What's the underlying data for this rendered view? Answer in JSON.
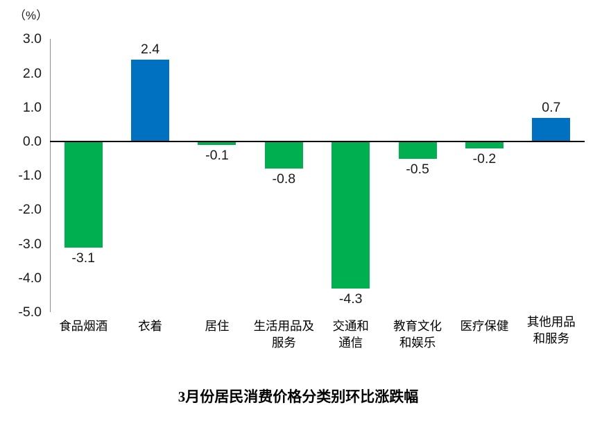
{
  "chart_data": {
    "type": "bar",
    "title": "3月份居民消费价格分类别环比涨跌幅",
    "ylabel": "（%）",
    "categories": [
      "食品烟酒",
      "衣着",
      "居住",
      "生活用品及\n服务",
      "交通和\n通信",
      "教育文化\n和娱乐",
      "医疗保健",
      "其他用品\n和服务"
    ],
    "values": [
      -3.1,
      2.4,
      -0.1,
      -0.8,
      -4.3,
      -0.5,
      -0.2,
      0.7
    ],
    "data_labels": [
      "-3.1",
      "2.4",
      "-0.1",
      "-0.8",
      "-4.3",
      "-0.5",
      "-0.2",
      "0.7"
    ],
    "ylim": [
      -5.0,
      3.0
    ],
    "ytick_step": 1.0,
    "ytick_labels": [
      "3.0",
      "2.0",
      "1.0",
      "0.0",
      "-1.0",
      "-2.0",
      "-3.0",
      "-4.0",
      "-5.0"
    ],
    "grid": false,
    "legend": null,
    "colors": {
      "positive_bar": "#0070C0",
      "negative_bar": "#00B050",
      "zero_line": "#000000",
      "axis_line": "#8C8C8C",
      "label_text": "#1A1A1A"
    }
  }
}
